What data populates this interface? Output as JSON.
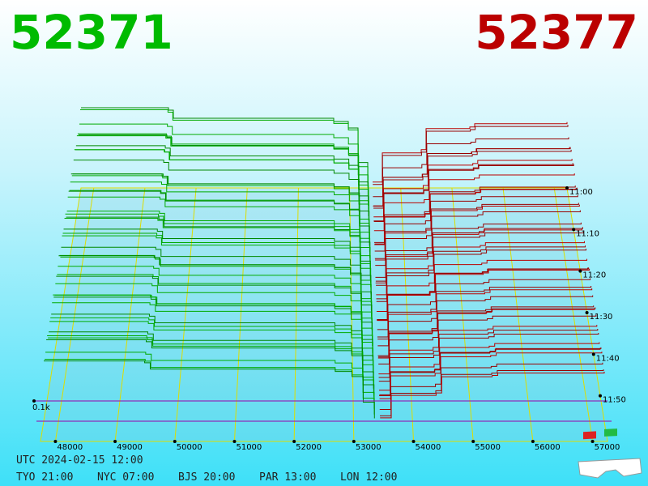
{
  "header": {
    "bid": "52371",
    "ask": "52377"
  },
  "price_axis": {
    "labels": [
      "48000",
      "49000",
      "50000",
      "51000",
      "52000",
      "53000",
      "54000",
      "55000",
      "56000",
      "57000"
    ]
  },
  "time_axis": {
    "labels": [
      "11:00",
      "11:10",
      "11:20",
      "11:30",
      "11:40",
      "11:50"
    ]
  },
  "volume_label": "0.1k",
  "footer": {
    "utc": "UTC 2024-02-15 12:00",
    "cities": [
      "TYO 21:00",
      "NYC 07:00",
      "BJS 20:00",
      "PAR 13:00",
      "LON 12:00"
    ]
  }
}
